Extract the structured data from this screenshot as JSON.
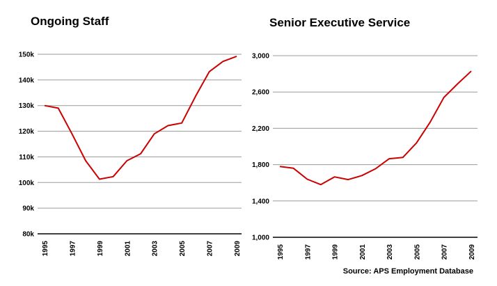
{
  "source": "Source: APS Employment Database",
  "line_color": "#cc0000",
  "chart_data": [
    {
      "type": "line",
      "title": "Ongoing Staff",
      "xlabel": "",
      "ylabel": "",
      "x": [
        1995,
        1996,
        1997,
        1998,
        1999,
        2000,
        2001,
        2002,
        2003,
        2004,
        2005,
        2006,
        2007,
        2008,
        2009
      ],
      "x_tick_labels": [
        "1995",
        "1997",
        "1999",
        "2001",
        "2003",
        "2005",
        "2007",
        "2009"
      ],
      "y_tick_labels": [
        "80k",
        "90k",
        "100k",
        "110k",
        "120k",
        "130k",
        "140k",
        "150k"
      ],
      "y_ticks": [
        80000,
        90000,
        100000,
        110000,
        120000,
        130000,
        140000,
        150000
      ],
      "ylim": [
        80000,
        150000
      ],
      "grid": true,
      "series": [
        {
          "values": [
            130000,
            129000,
            119000,
            108500,
            101300,
            102300,
            108500,
            111200,
            119000,
            122200,
            123200,
            133600,
            143200,
            147200,
            149200
          ]
        }
      ]
    },
    {
      "type": "line",
      "title": "Senior Executive Service",
      "xlabel": "",
      "ylabel": "",
      "x": [
        1995,
        1996,
        1997,
        1998,
        1999,
        2000,
        2001,
        2002,
        2003,
        2004,
        2005,
        2006,
        2007,
        2008,
        2009
      ],
      "x_tick_labels": [
        "1995",
        "1997",
        "1999",
        "2001",
        "2003",
        "2005",
        "2007",
        "2009"
      ],
      "y_tick_labels": [
        "1,000",
        "1,400",
        "1,800",
        "2,200",
        "2,600",
        "3,000"
      ],
      "y_ticks": [
        1000,
        1400,
        1800,
        2200,
        2600,
        3000
      ],
      "ylim": [
        1000,
        3000
      ],
      "grid": true,
      "series": [
        {
          "values": [
            1780,
            1760,
            1640,
            1580,
            1665,
            1635,
            1680,
            1755,
            1865,
            1880,
            2040,
            2270,
            2540,
            2690,
            2830
          ]
        }
      ]
    }
  ]
}
